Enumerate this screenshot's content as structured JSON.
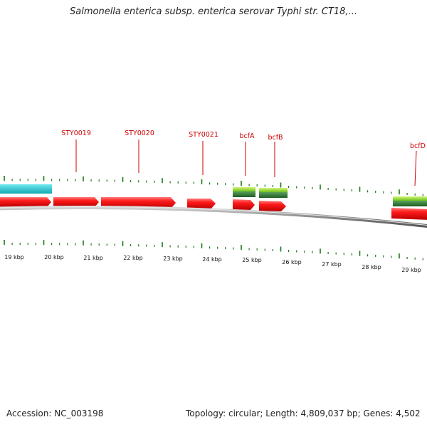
{
  "title": "Salmonella enterica subsp. enterica serovar Typhi str. CT18,...",
  "footer": {
    "accession": "Accession: NC_003198",
    "summary": "Topology: circular; Length: 4,809,037 bp; Genes: 4,502"
  },
  "scale": {
    "labels": [
      "19 kbp",
      "20 kbp",
      "21 kbp",
      "22 kbp",
      "23 kbp",
      "24 kbp",
      "25 kbp",
      "26 kbp",
      "27 kbp",
      "28 kbp",
      "29 kbp"
    ]
  },
  "genes": [
    {
      "name": "STY0019"
    },
    {
      "name": "STY0020"
    },
    {
      "name": "STY0021"
    },
    {
      "name": "bcfA"
    },
    {
      "name": "bcfB"
    },
    {
      "name": "bcfD"
    }
  ],
  "colors": {
    "cds": "#ff0000",
    "teal_feature": "#1ec8d2",
    "green_feature": "#7fd21e",
    "dark_green_feature": "#2e7d32",
    "backbone": "#888888",
    "tick": "#1a7a1a",
    "label": "#cc0000"
  }
}
